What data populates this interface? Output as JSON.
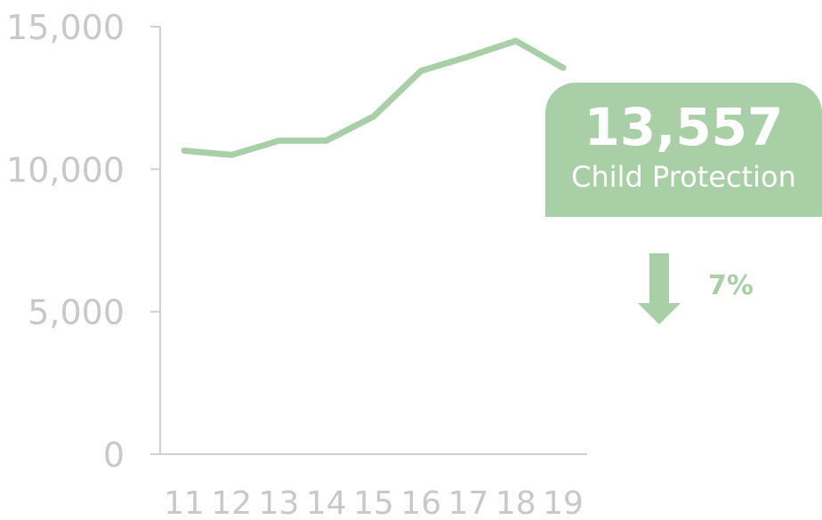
{
  "chart_data": {
    "type": "line",
    "categories": [
      "11",
      "12",
      "13",
      "14",
      "15",
      "16",
      "17",
      "18",
      "19"
    ],
    "values": [
      10650,
      10500,
      11000,
      11000,
      11850,
      13450,
      13950,
      14500,
      13557
    ],
    "ylim": [
      0,
      15000
    ],
    "yticks": [
      0,
      5000,
      10000,
      15000
    ],
    "ytick_labels": [
      "0",
      "5,000",
      "10,000",
      "15,000"
    ],
    "grid": false,
    "legend": "none",
    "line_color": "#a9cfa6"
  },
  "callout": {
    "value": "13,557",
    "label": "Child Protection",
    "change_pct": "7%",
    "change_direction": "down-arrow-icon"
  },
  "colors": {
    "accent": "#a9cfa6",
    "axis": "#d0d0d0",
    "tick_text": "#c8c8c8"
  }
}
